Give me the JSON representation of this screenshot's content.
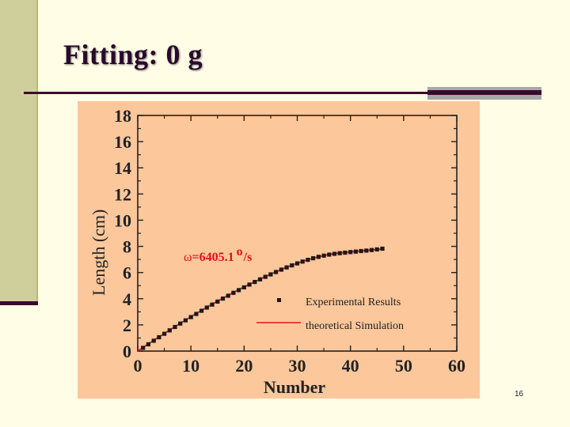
{
  "slide": {
    "title": "Fitting: 0 g",
    "page_number": "16"
  },
  "colors": {
    "background": "#fffde6",
    "sidebar": "#cfcf9c",
    "accent_dark": "#3a0a2a",
    "plot_background": "#fbc79b",
    "experimental": "#1a1a1a",
    "simulation": "#e8141c",
    "annotation": "#e0101c"
  },
  "chart_data": {
    "type": "scatter",
    "xlabel": "Number",
    "ylabel": "Length (cm)",
    "xlim": [
      0,
      60
    ],
    "ylim": [
      0,
      18
    ],
    "x_ticks": [
      "0",
      "10",
      "20",
      "30",
      "40",
      "50",
      "60"
    ],
    "y_ticks": [
      "0",
      "2",
      "4",
      "6",
      "8",
      "10",
      "12",
      "14",
      "16",
      "18"
    ],
    "annotation": {
      "symbol": "ω",
      "text": "=6405.1",
      "unit_sup": "o",
      "unit": "/s"
    },
    "legend": {
      "position": "lower-right",
      "experimental_label": "Experimental Results",
      "simulation_label": "theoretical Simulation"
    },
    "series": [
      {
        "name": "Experimental Results",
        "kind": "markers",
        "x": [
          1,
          2,
          3,
          4,
          5,
          6,
          7,
          8,
          9,
          10,
          11,
          12,
          13,
          14,
          15,
          16,
          17,
          18,
          19,
          20,
          21,
          22,
          23,
          24,
          25,
          26,
          27,
          28,
          29,
          30,
          31,
          32,
          33,
          34,
          35,
          36,
          37,
          38,
          39,
          40,
          41,
          42,
          43,
          44,
          45,
          46
        ],
        "y": [
          0.25,
          0.52,
          0.79,
          1.06,
          1.32,
          1.58,
          1.84,
          2.1,
          2.35,
          2.6,
          2.84,
          3.08,
          3.32,
          3.55,
          3.78,
          4.01,
          4.23,
          4.45,
          4.66,
          4.87,
          5.08,
          5.28,
          5.48,
          5.67,
          5.86,
          6.04,
          6.22,
          6.39,
          6.55,
          6.7,
          6.84,
          6.97,
          7.09,
          7.2,
          7.29,
          7.37,
          7.43,
          7.48,
          7.52,
          7.56,
          7.6,
          7.64,
          7.68,
          7.72,
          7.77,
          7.82
        ]
      },
      {
        "name": "theoretical Simulation",
        "kind": "line",
        "x": [
          0,
          2,
          4,
          6,
          8,
          10,
          12,
          14,
          16,
          18,
          20,
          22,
          24,
          26,
          28,
          30,
          32,
          34,
          36,
          38,
          40,
          42,
          44,
          46
        ],
        "y": [
          0.0,
          0.55,
          1.08,
          1.6,
          2.12,
          2.62,
          3.11,
          3.58,
          4.04,
          4.48,
          4.9,
          5.3,
          5.69,
          6.06,
          6.4,
          6.71,
          6.98,
          7.2,
          7.38,
          7.5,
          7.58,
          7.65,
          7.72,
          7.8
        ]
      }
    ]
  }
}
